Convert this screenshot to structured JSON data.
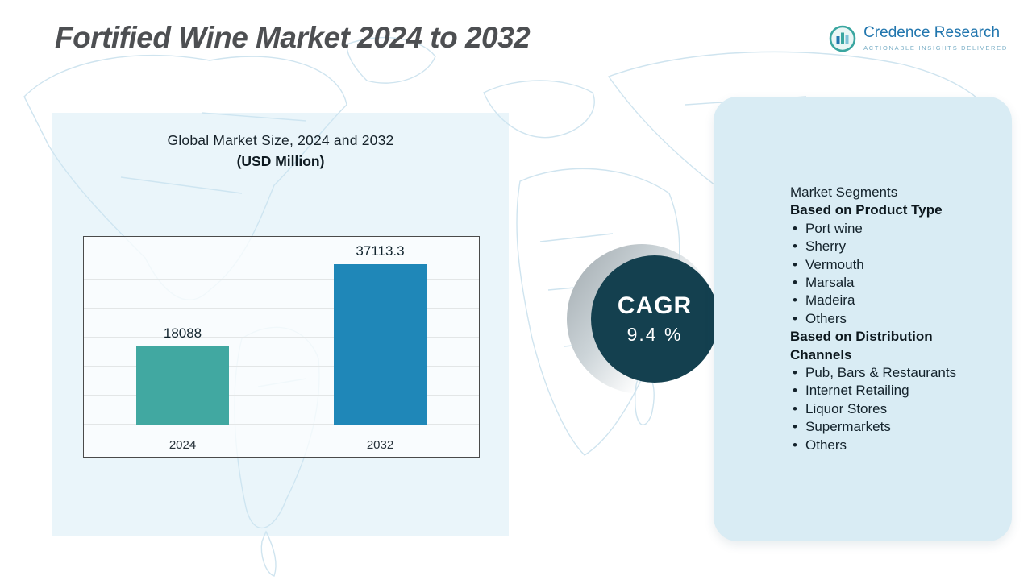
{
  "header": {
    "title": "Fortified Wine Market 2024 to 2032",
    "logo": {
      "name": "Credence Research",
      "tagline": "Actionable Insights Delivered"
    }
  },
  "chart_data": {
    "type": "bar",
    "title": "Global Market Size, 2024 and 2032",
    "subtitle": "(USD Million)",
    "categories": [
      "2024",
      "2032"
    ],
    "values": [
      18088,
      37113.3
    ],
    "value_labels": [
      "18088",
      "37113.3"
    ],
    "bar_colors": [
      "#41a8a1",
      "#1f87b8"
    ],
    "ylabel": "",
    "xlabel": "",
    "ylim": [
      0,
      40000
    ],
    "grid": true,
    "legend": "none"
  },
  "cagr": {
    "label": "CAGR",
    "value": "9.4 %"
  },
  "segments": {
    "title": "Market Segments",
    "groups": [
      {
        "heading": "Based on Product Type",
        "items": [
          "Port wine",
          "Sherry",
          "Vermouth",
          "Marsala",
          "Madeira",
          "Others"
        ]
      },
      {
        "heading": "Based on Distribution Channels",
        "items": [
          "Pub, Bars & Restaurants",
          "Internet Retailing",
          "Liquor Stores",
          "Supermarkets",
          "Others"
        ]
      }
    ]
  },
  "colors": {
    "bar_2024": "#41a8a1",
    "bar_2032": "#1f87b8",
    "cagr_circle": "#14404f",
    "panel_blue": "#d9ecf4",
    "map_line": "#cfe4ef",
    "brand_blue": "#2176ae",
    "brand_teal": "#3aa6a0"
  }
}
